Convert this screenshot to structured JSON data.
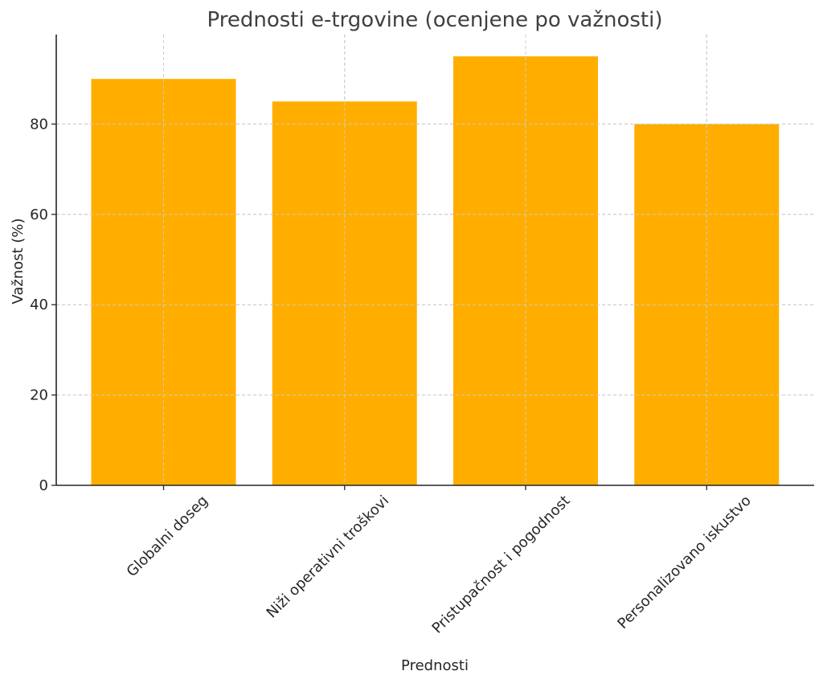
{
  "chart_data": {
    "type": "bar",
    "title": "Prednosti e-trgovine (ocenjene po važnosti)",
    "xlabel": "Prednosti",
    "ylabel": "Važnost (%)",
    "categories": [
      "Globalni doseg",
      "Niži operativni troškovi",
      "Pristupačnost i pogodnost",
      "Personalizovano iskustvo"
    ],
    "values": [
      90,
      85,
      95,
      80
    ],
    "ylim": [
      0,
      100
    ],
    "yticks": [
      0,
      20,
      40,
      60,
      80
    ],
    "grid": true,
    "bar_color": "#FFAE00"
  }
}
